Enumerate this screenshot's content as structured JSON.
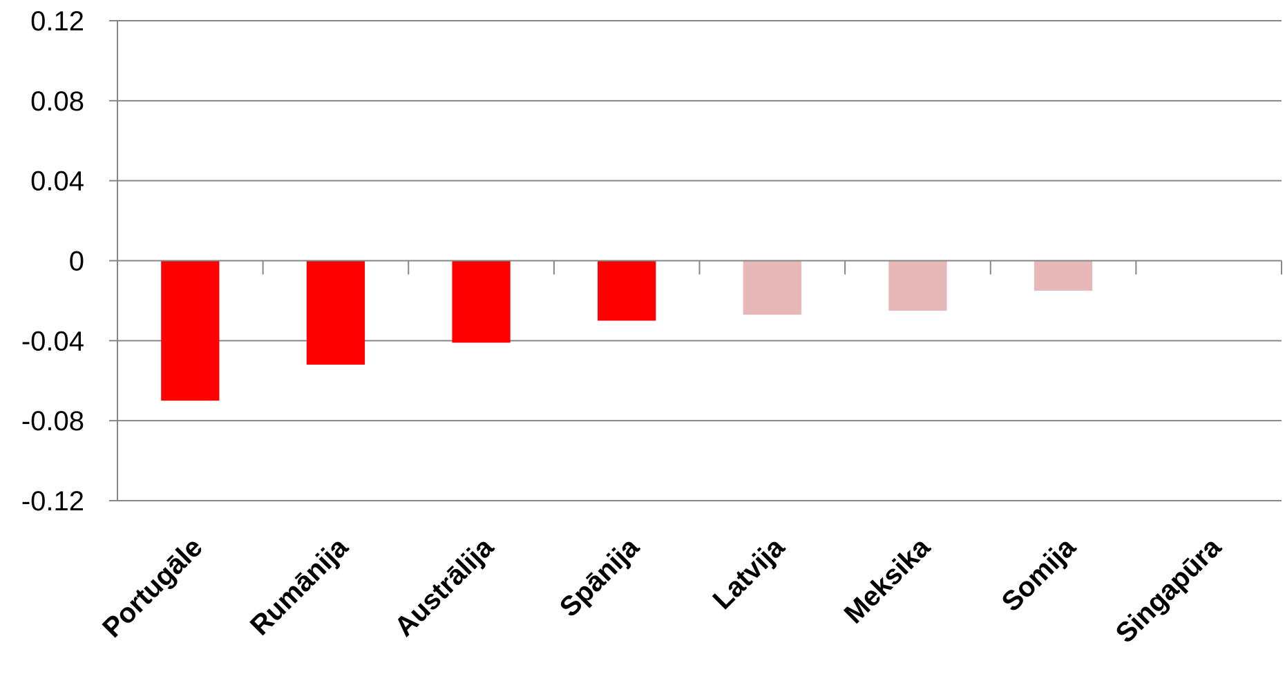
{
  "chart_data": {
    "type": "bar",
    "title": "",
    "xlabel": "",
    "ylabel": "",
    "ylim": [
      -0.12,
      0.12
    ],
    "yticks": [
      0.12,
      0.08,
      0.04,
      0,
      -0.04,
      -0.08,
      -0.12
    ],
    "ytick_labels": [
      "0.12",
      "0.08",
      "0.04",
      "0",
      "-0.04",
      "-0.08",
      "-0.12"
    ],
    "grid": true,
    "legend": "none",
    "categories": [
      "Portugāle",
      "Rumānija",
      "Austrālija",
      "Spānija",
      "Latvija",
      "Meksika",
      "Somija",
      "Singapūra"
    ],
    "values": [
      -0.07,
      -0.052,
      -0.041,
      -0.03,
      -0.027,
      -0.025,
      -0.015,
      0
    ],
    "bar_colors": [
      "#ff0000",
      "#ff0000",
      "#ff0000",
      "#ff0000",
      "#e6b8b7",
      "#e6b8b7",
      "#e6b8b7",
      "#e6b8b7"
    ],
    "gridline_color": "#868686",
    "axis_color": "#868686"
  }
}
